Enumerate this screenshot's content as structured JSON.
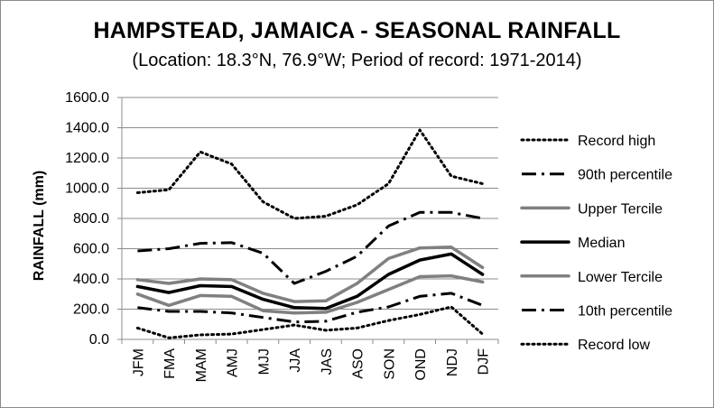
{
  "chart_data": {
    "type": "line",
    "title": "HAMPSTEAD, JAMAICA - SEASONAL RAINFALL",
    "subtitle": "(Location: 18.3°N, 76.9°W; Period of record: 1971-2014)",
    "xlabel": "",
    "ylabel": "RAINFALL (mm)",
    "ylim": [
      0,
      1600
    ],
    "yticks": [
      "0.0",
      "200.0",
      "400.0",
      "600.0",
      "800.0",
      "1000.0",
      "1200.0",
      "1400.0",
      "1600.0"
    ],
    "categories": [
      "JFM",
      "FMA",
      "MAM",
      "AMJ",
      "MJJ",
      "JJA",
      "JAS",
      "ASO",
      "SON",
      "OND",
      "NDJ",
      "DJF"
    ],
    "grid": true,
    "legend_position": "right",
    "series": [
      {
        "name": "Record high",
        "style": "dotted",
        "color": "#000000",
        "values": [
          970,
          990,
          1240,
          1160,
          910,
          800,
          815,
          890,
          1030,
          1385,
          1080,
          1030
        ]
      },
      {
        "name": "90th percentile",
        "style": "dashdot",
        "color": "#000000",
        "values": [
          585,
          600,
          635,
          640,
          570,
          370,
          450,
          550,
          750,
          840,
          840,
          800
        ]
      },
      {
        "name": "Upper Tercile",
        "style": "solid",
        "color": "#808080",
        "values": [
          395,
          370,
          400,
          395,
          305,
          250,
          255,
          370,
          535,
          605,
          610,
          475
        ]
      },
      {
        "name": "Median",
        "style": "solid-bold",
        "color": "#000000",
        "values": [
          350,
          310,
          355,
          350,
          265,
          210,
          205,
          285,
          430,
          525,
          565,
          430
        ]
      },
      {
        "name": "Lower Tercile",
        "style": "solid",
        "color": "#808080",
        "values": [
          300,
          225,
          290,
          285,
          190,
          175,
          180,
          245,
          330,
          415,
          420,
          380
        ]
      },
      {
        "name": "10th percentile",
        "style": "dashdot",
        "color": "#000000",
        "values": [
          210,
          185,
          185,
          175,
          145,
          115,
          120,
          180,
          215,
          285,
          305,
          225
        ]
      },
      {
        "name": "Record low",
        "style": "dotted",
        "color": "#000000",
        "values": [
          75,
          10,
          30,
          35,
          65,
          95,
          60,
          75,
          125,
          165,
          215,
          35
        ]
      }
    ]
  }
}
